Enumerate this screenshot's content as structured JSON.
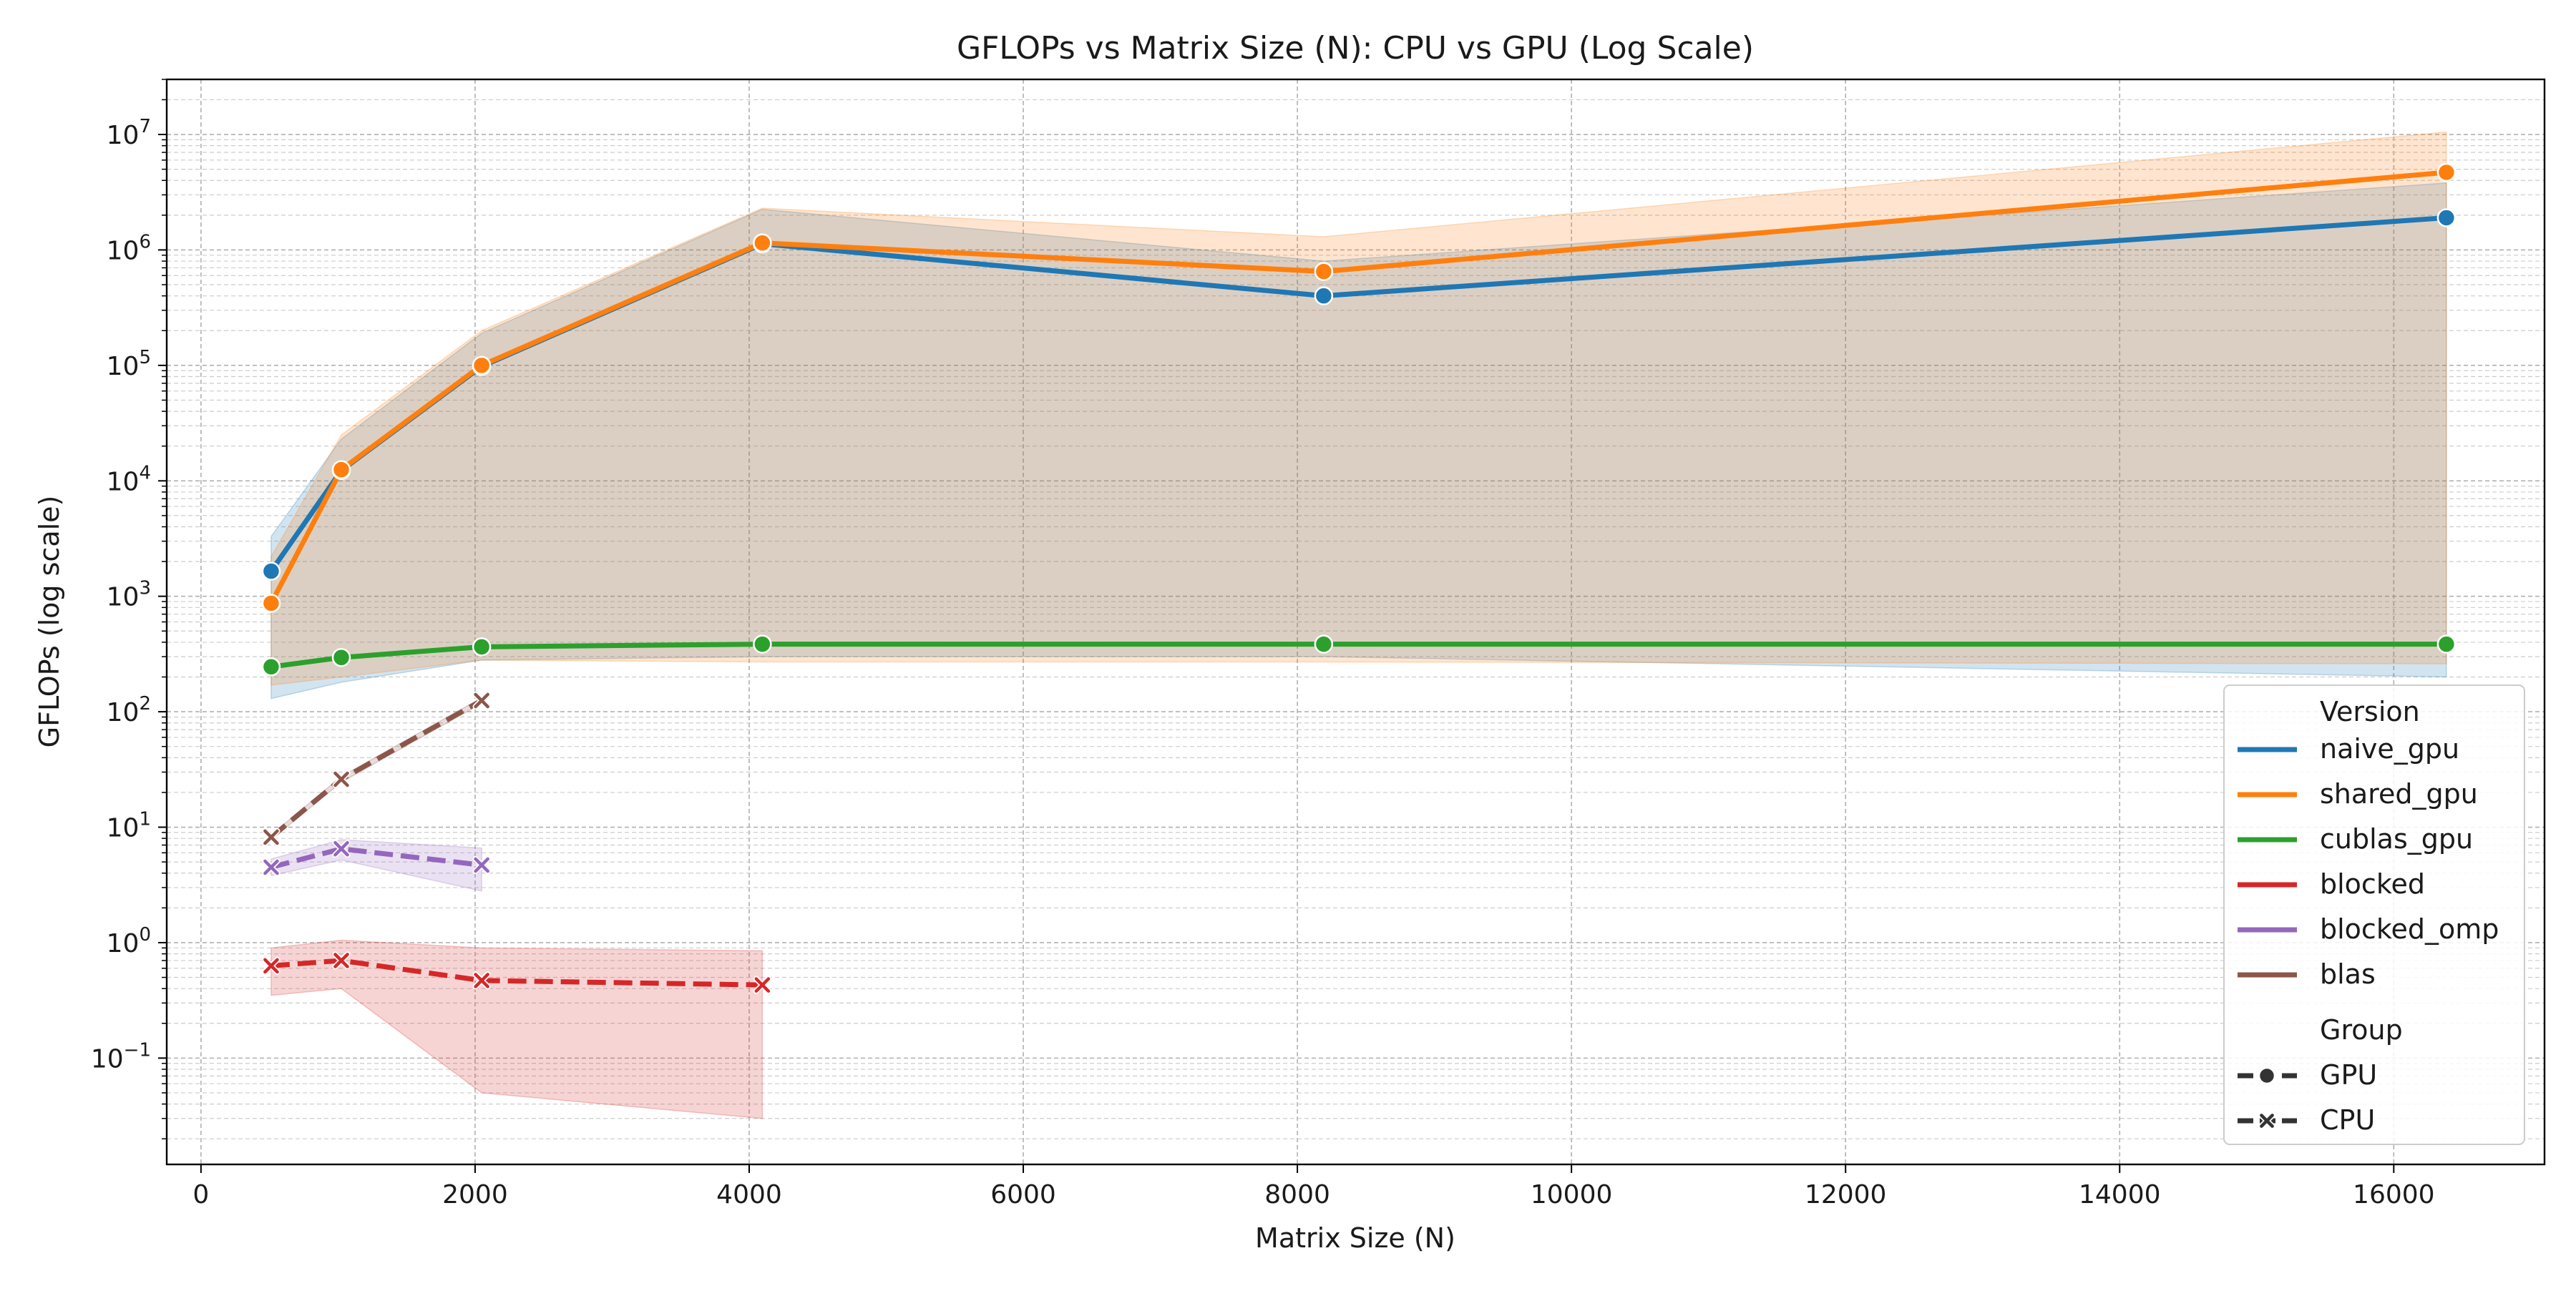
{
  "chart_data": {
    "type": "line",
    "title": "GFLOPs vs Matrix Size (N): CPU vs GPU (Log Scale)",
    "xlabel": "Matrix Size (N)",
    "ylabel": "GFLOPs (log scale)",
    "xlim": [
      -250,
      17100
    ],
    "ylim": [
      0.012,
      30000000
    ],
    "yscale": "log",
    "grid": "both major and minor, dashed",
    "x_ticks": [
      0,
      2000,
      4000,
      6000,
      8000,
      10000,
      12000,
      14000,
      16000
    ],
    "y_ticks": [
      {
        "value": 0.1,
        "base": "10",
        "exp": "−1"
      },
      {
        "value": 1,
        "base": "10",
        "exp": "0"
      },
      {
        "value": 10,
        "base": "10",
        "exp": "1"
      },
      {
        "value": 100,
        "base": "10",
        "exp": "2"
      },
      {
        "value": 1000,
        "base": "10",
        "exp": "3"
      },
      {
        "value": 10000,
        "base": "10",
        "exp": "4"
      },
      {
        "value": 100000,
        "base": "10",
        "exp": "5"
      },
      {
        "value": 1000000,
        "base": "10",
        "exp": "6"
      },
      {
        "value": 10000000,
        "base": "10",
        "exp": "7"
      }
    ],
    "legend": {
      "position": "lower-right",
      "version_title": "Version",
      "group_title": "Group",
      "groups": [
        {
          "name": "GPU",
          "marker": "circle"
        },
        {
          "name": "CPU",
          "marker": "x"
        }
      ]
    },
    "series": [
      {
        "name": "naive_gpu",
        "group": "GPU",
        "color": "#1f77b4",
        "dashed": false,
        "x": [
          512,
          1024,
          2048,
          4096,
          8192,
          16384
        ],
        "y": [
          1650,
          12300,
          98000,
          1130000,
          400000,
          1900000
        ],
        "band_low": [
          130,
          180,
          280,
          300,
          300,
          200
        ],
        "band_high": [
          3300,
          23000,
          190000,
          2250000,
          800000,
          3800000
        ]
      },
      {
        "name": "shared_gpu",
        "group": "GPU",
        "color": "#ff7f0e",
        "dashed": false,
        "x": [
          512,
          1024,
          2048,
          4096,
          8192,
          16384
        ],
        "y": [
          870,
          12500,
          100000,
          1150000,
          650000,
          4700000
        ],
        "band_low": [
          170,
          200,
          280,
          270,
          270,
          260
        ],
        "band_high": [
          2200,
          25000,
          200000,
          2300000,
          1300000,
          10500000
        ]
      },
      {
        "name": "cublas_gpu",
        "group": "GPU",
        "color": "#2ca02c",
        "dashed": false,
        "x": [
          512,
          1024,
          2048,
          4096,
          8192,
          16384
        ],
        "y": [
          245,
          295,
          365,
          385,
          385,
          385
        ],
        "band_low": [
          235,
          285,
          355,
          375,
          375,
          375
        ],
        "band_high": [
          255,
          305,
          375,
          395,
          395,
          395
        ]
      },
      {
        "name": "blocked",
        "group": "CPU",
        "color": "#d62728",
        "dashed": true,
        "x": [
          512,
          1024,
          2048,
          4096
        ],
        "y": [
          0.63,
          0.7,
          0.47,
          0.43
        ],
        "band_low": [
          0.35,
          0.4,
          0.05,
          0.03
        ],
        "band_high": [
          0.9,
          1.05,
          0.9,
          0.85
        ]
      },
      {
        "name": "blocked_omp",
        "group": "CPU",
        "color": "#9467bd",
        "dashed": true,
        "x": [
          512,
          1024,
          2048
        ],
        "y": [
          4.5,
          6.5,
          4.7
        ],
        "band_low": [
          3.8,
          5.2,
          2.8
        ],
        "band_high": [
          5.3,
          7.8,
          6.6
        ]
      },
      {
        "name": "blas",
        "group": "CPU",
        "color": "#8c564b",
        "dashed": true,
        "x": [
          512,
          1024,
          2048
        ],
        "y": [
          8.2,
          26,
          125
        ],
        "band_low": [
          7.8,
          24.5,
          118
        ],
        "band_high": [
          8.6,
          27.5,
          132
        ]
      }
    ]
  }
}
